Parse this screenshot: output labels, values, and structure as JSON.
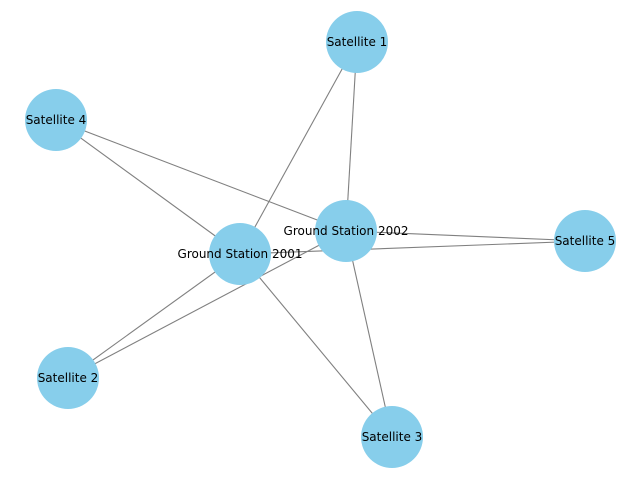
{
  "graph": {
    "node_color": "#87ceeb",
    "edge_color": "#808080",
    "nodes": [
      {
        "id": "gs2001",
        "label": "Ground Station 2001"
      },
      {
        "id": "gs2002",
        "label": "Ground Station 2002"
      },
      {
        "id": "sat1",
        "label": "Satellite 1"
      },
      {
        "id": "sat2",
        "label": "Satellite 2"
      },
      {
        "id": "sat3",
        "label": "Satellite 3"
      },
      {
        "id": "sat4",
        "label": "Satellite 4"
      },
      {
        "id": "sat5",
        "label": "Satellite 5"
      }
    ],
    "edges": [
      {
        "source": "gs2001",
        "target": "sat1"
      },
      {
        "source": "gs2001",
        "target": "sat2"
      },
      {
        "source": "gs2001",
        "target": "sat3"
      },
      {
        "source": "gs2001",
        "target": "sat4"
      },
      {
        "source": "gs2001",
        "target": "sat5"
      },
      {
        "source": "gs2002",
        "target": "sat1"
      },
      {
        "source": "gs2002",
        "target": "sat2"
      },
      {
        "source": "gs2002",
        "target": "sat3"
      },
      {
        "source": "gs2002",
        "target": "sat4"
      },
      {
        "source": "gs2002",
        "target": "sat5"
      }
    ]
  }
}
